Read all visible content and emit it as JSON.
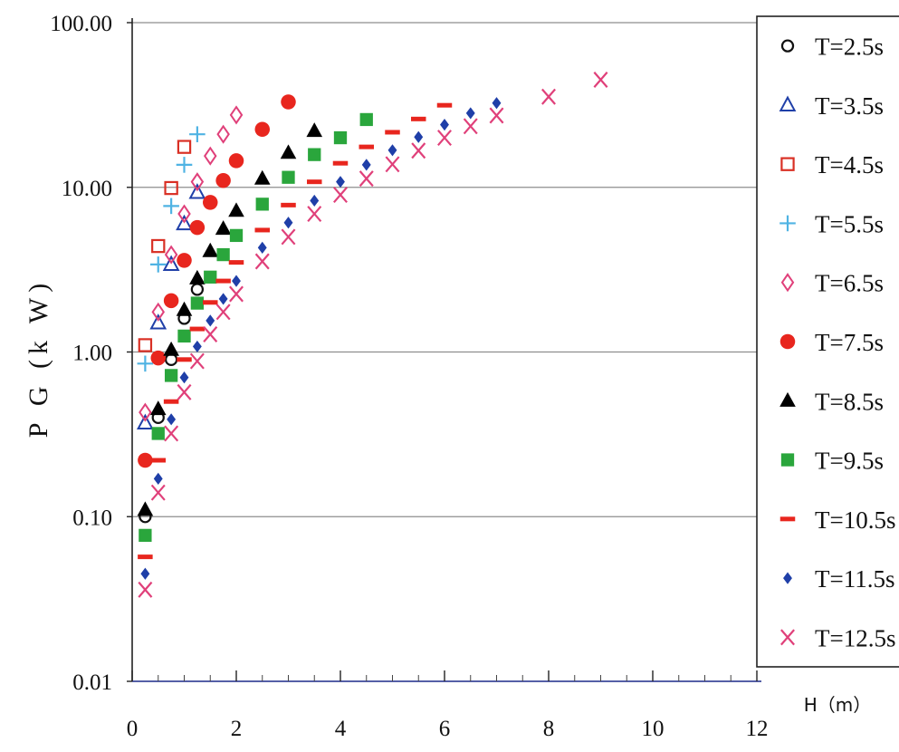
{
  "chart_data": {
    "type": "scatter",
    "title": "",
    "xlabel": "H（m）",
    "ylabel": "P G (k W)",
    "xlim": [
      0,
      12
    ],
    "ylim": [
      0.01,
      100
    ],
    "y_scale": "log",
    "x_ticks": [
      "0",
      "2",
      "4",
      "6",
      "8",
      "10",
      "12"
    ],
    "y_ticks": [
      "0.01",
      "0.10",
      "1.00",
      "10.00",
      "100.00"
    ],
    "grid": "horizontal",
    "legend_position": "right",
    "series": [
      {
        "name": "T=2.5s",
        "marker": "circle-open",
        "color": "#111111",
        "x": [
          0.25,
          0.5,
          0.75,
          1.0,
          1.25
        ],
        "y": [
          0.1,
          0.4,
          0.9,
          1.6,
          2.4
        ]
      },
      {
        "name": "T=3.5s",
        "marker": "triangle-open",
        "color": "#1f3fa8",
        "x": [
          0.25,
          0.5,
          0.75,
          1.0,
          1.25
        ],
        "y": [
          0.37,
          1.5,
          3.4,
          6.0,
          9.3
        ]
      },
      {
        "name": "T=4.5s",
        "marker": "square-open",
        "color": "#d93025",
        "x": [
          0.25,
          0.5,
          0.75,
          1.0
        ],
        "y": [
          1.1,
          4.4,
          9.9,
          17.6
        ]
      },
      {
        "name": "T=5.5s",
        "marker": "plus",
        "color": "#4fb3e3",
        "x": [
          0.25,
          0.5,
          0.75,
          1.0,
          1.25
        ],
        "y": [
          0.85,
          3.4,
          7.7,
          13.7,
          21.0
        ]
      },
      {
        "name": "T=6.5s",
        "marker": "diamond-open",
        "color": "#e0407a",
        "x": [
          0.25,
          0.5,
          0.75,
          1.0,
          1.25,
          1.5,
          1.75,
          2.0
        ],
        "y": [
          0.43,
          1.75,
          3.9,
          6.9,
          10.8,
          15.5,
          21.0,
          27.5
        ]
      },
      {
        "name": "T=7.5s",
        "marker": "circle-filled",
        "color": "#e8261e",
        "x": [
          0.25,
          0.5,
          0.75,
          1.0,
          1.25,
          1.5,
          1.75,
          2.0,
          2.5,
          3.0
        ],
        "y": [
          0.22,
          0.92,
          2.05,
          3.6,
          5.7,
          8.1,
          11.0,
          14.5,
          22.5,
          33.0
        ]
      },
      {
        "name": "T=8.5s",
        "marker": "triangle-filled",
        "color": "#000000",
        "x": [
          0.25,
          0.5,
          0.75,
          1.0,
          1.25,
          1.5,
          1.75,
          2.0,
          2.5,
          3.0,
          3.5
        ],
        "y": [
          0.11,
          0.45,
          1.03,
          1.8,
          2.8,
          4.1,
          5.6,
          7.2,
          11.3,
          16.2,
          22.0
        ]
      },
      {
        "name": "T=9.5s",
        "marker": "square-filled",
        "color": "#2aa63c",
        "x": [
          0.25,
          0.5,
          0.75,
          1.0,
          1.25,
          1.5,
          1.75,
          2.0,
          2.5,
          3.0,
          3.5,
          4.0,
          4.5
        ],
        "y": [
          0.077,
          0.32,
          0.72,
          1.25,
          1.98,
          2.85,
          3.9,
          5.1,
          7.9,
          11.5,
          15.8,
          20.0,
          25.8
        ]
      },
      {
        "name": "T=10.5s",
        "marker": "dash",
        "color": "#e8261e",
        "x": [
          0.25,
          0.5,
          0.75,
          1.0,
          1.25,
          1.5,
          1.75,
          2.0,
          2.5,
          3.0,
          3.5,
          4.0,
          4.5,
          5.0,
          5.5,
          6.0
        ],
        "y": [
          0.057,
          0.22,
          0.5,
          0.9,
          1.38,
          2.0,
          2.7,
          3.5,
          5.5,
          7.8,
          10.8,
          14.0,
          17.6,
          21.6,
          26.0,
          31.5
        ]
      },
      {
        "name": "T=11.5s",
        "marker": "diamond-filled",
        "color": "#1f3fa8",
        "x": [
          0.25,
          0.5,
          0.75,
          1.0,
          1.25,
          1.5,
          1.75,
          2.0,
          2.5,
          3.0,
          3.5,
          4.0,
          4.5,
          5.0,
          5.5,
          6.0,
          6.5,
          7.0
        ],
        "y": [
          0.045,
          0.17,
          0.39,
          0.7,
          1.08,
          1.55,
          2.1,
          2.7,
          4.3,
          6.1,
          8.3,
          10.8,
          13.7,
          16.8,
          20.2,
          24.0,
          28.2,
          32.5
        ]
      },
      {
        "name": "T=12.5s",
        "marker": "x",
        "color": "#e0407a",
        "x": [
          0.25,
          0.5,
          0.75,
          1.0,
          1.25,
          1.5,
          1.75,
          2.0,
          2.5,
          3.0,
          3.5,
          4.0,
          4.5,
          5.0,
          5.5,
          6.0,
          6.5,
          7.0,
          8.0,
          9.0
        ],
        "y": [
          0.036,
          0.14,
          0.32,
          0.57,
          0.88,
          1.28,
          1.75,
          2.25,
          3.55,
          5.0,
          6.9,
          9.0,
          11.3,
          13.8,
          16.7,
          20.0,
          23.5,
          27.3,
          35.5,
          45.0
        ]
      }
    ]
  }
}
